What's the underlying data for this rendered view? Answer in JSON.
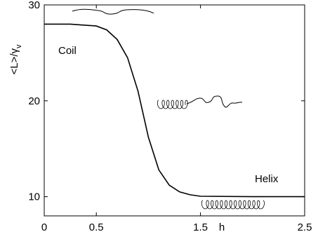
{
  "chart_data": {
    "type": "line",
    "xlabel": "h",
    "ylabel": "<L>/γ",
    "ylabel_sub": "v",
    "x": [
      0,
      0.25,
      0.5,
      0.6,
      0.7,
      0.8,
      0.9,
      1.0,
      1.1,
      1.2,
      1.3,
      1.4,
      1.5,
      2.0,
      2.5
    ],
    "values": [
      28,
      28,
      27.8,
      27.4,
      26.4,
      24.5,
      21,
      16.2,
      12.8,
      11.2,
      10.5,
      10.2,
      10.05,
      10,
      10
    ],
    "color": "#000000",
    "xlim": [
      0,
      2.5
    ],
    "xticks": [
      0,
      0.5,
      1.5,
      2.5
    ],
    "ylim": [
      8,
      30
    ],
    "yticks": [
      10,
      20,
      30
    ],
    "annotations": [
      "Coil",
      "Helix"
    ]
  }
}
